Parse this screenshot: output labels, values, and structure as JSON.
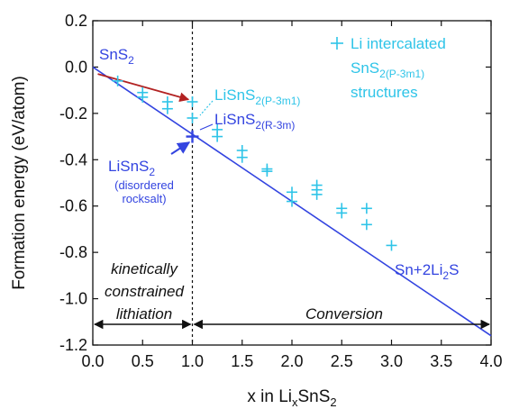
{
  "chart_data": {
    "type": "scatter",
    "xlabel": "x in Li",
    "xlabel_sub": "x",
    "xlabel_rest": "SnS",
    "xlabel_sub2": "2",
    "ylabel": "Formation energy (eV/atom)",
    "xlim": [
      0.0,
      4.0
    ],
    "ylim": [
      -1.2,
      0.2
    ],
    "xticks": [
      "0.0",
      "0.5",
      "1.0",
      "1.5",
      "2.0",
      "2.5",
      "3.0",
      "3.5",
      "4.0"
    ],
    "yticks": [
      "0.2",
      "0.0",
      "-0.2",
      "-0.4",
      "-0.6",
      "-0.8",
      "-1.0",
      "-1.2"
    ],
    "legend": {
      "position": "top-right",
      "marker": "+",
      "line1": "Li intercalated",
      "line2_main": "SnS",
      "line2_sub": "2(P-3m1)",
      "line3": "structures"
    },
    "series": [
      {
        "name": "Li intercalated SnS2(P-3m1) structures",
        "color": "#2ec4e8",
        "points": [
          [
            0.25,
            -0.06
          ],
          [
            0.5,
            -0.11
          ],
          [
            0.5,
            -0.13
          ],
          [
            0.75,
            -0.15
          ],
          [
            0.75,
            -0.18
          ],
          [
            1.0,
            -0.15
          ],
          [
            1.0,
            -0.22
          ],
          [
            1.25,
            -0.27
          ],
          [
            1.25,
            -0.3
          ],
          [
            1.5,
            -0.36
          ],
          [
            1.5,
            -0.39
          ],
          [
            1.75,
            -0.44
          ],
          [
            1.75,
            -0.45
          ],
          [
            2.0,
            -0.54
          ],
          [
            2.0,
            -0.58
          ],
          [
            2.25,
            -0.51
          ],
          [
            2.25,
            -0.53
          ],
          [
            2.25,
            -0.55
          ],
          [
            2.5,
            -0.61
          ],
          [
            2.5,
            -0.63
          ],
          [
            2.75,
            -0.61
          ],
          [
            2.75,
            -0.68
          ],
          [
            3.0,
            -0.77
          ]
        ]
      }
    ],
    "hull_line": {
      "x": [
        0.0,
        4.0
      ],
      "y": [
        0.0,
        -1.16
      ],
      "color": "#3344e0"
    },
    "special_point": {
      "x": 1.0,
      "y": -0.3,
      "color": "#3344e0"
    },
    "vertical_line_x": 1.0,
    "red_arrow": {
      "from": [
        0.05,
        -0.03
      ],
      "to": [
        0.96,
        -0.14
      ],
      "color": "#b22222"
    },
    "annotations": {
      "sns2": {
        "main": "SnS",
        "sub": "2"
      },
      "lisns2_p": {
        "main": "LiSnS",
        "sub": "2(P-3m1)"
      },
      "lisns2_r": {
        "main": "LiSnS",
        "sub": "2(R-3m)"
      },
      "lisns2_disordered": {
        "main": "LiSnS",
        "sub": "2",
        "line2": "(disordered",
        "line3": "rocksalt)"
      },
      "sn_li2s": {
        "main": "Sn+2Li",
        "sub": "2",
        "tail": "S"
      },
      "kinetic": [
        "kinetically",
        "constrained",
        "lithiation"
      ],
      "conversion": "Conversion"
    },
    "regions": [
      {
        "label": "kinetically constrained lithiation",
        "x_range": [
          0.0,
          1.0
        ]
      },
      {
        "label": "Conversion",
        "x_range": [
          1.0,
          4.0
        ]
      }
    ],
    "grid": false
  }
}
